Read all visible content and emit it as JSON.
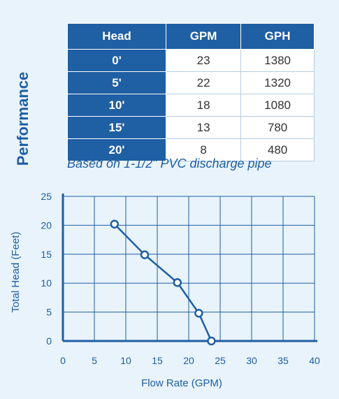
{
  "side_title": "Performance",
  "table": {
    "headers": [
      "Head",
      "GPM",
      "GPH"
    ],
    "rows": [
      [
        "0'",
        "23",
        "1380"
      ],
      [
        "5'",
        "22",
        "1320"
      ],
      [
        "10'",
        "18",
        "1080"
      ],
      [
        "15'",
        "13",
        "780"
      ],
      [
        "20'",
        "8",
        "480"
      ]
    ]
  },
  "note": "Based on 1-1/2\" PVC discharge pipe",
  "chart_data": {
    "type": "line",
    "xlabel": "Flow Rate (GPM)",
    "ylabel": "Total Head (Feet)",
    "xlim": [
      0,
      40
    ],
    "ylim": [
      0,
      25
    ],
    "x_ticks": [
      "0",
      "5",
      "10",
      "15",
      "20",
      "25",
      "30",
      "35",
      "40"
    ],
    "y_ticks": [
      "0",
      "5",
      "10",
      "15",
      "20",
      "25"
    ],
    "grid": true,
    "series": [
      {
        "points": [
          [
            8.2,
            20.2
          ],
          [
            13,
            14.9
          ],
          [
            18.2,
            10.1
          ],
          [
            21.6,
            4.8
          ],
          [
            23.6,
            0
          ]
        ]
      }
    ],
    "colors": {
      "line": "#1f5fa3",
      "grid": "#1f5fa3",
      "marker_fill": "#ffffff"
    }
  }
}
